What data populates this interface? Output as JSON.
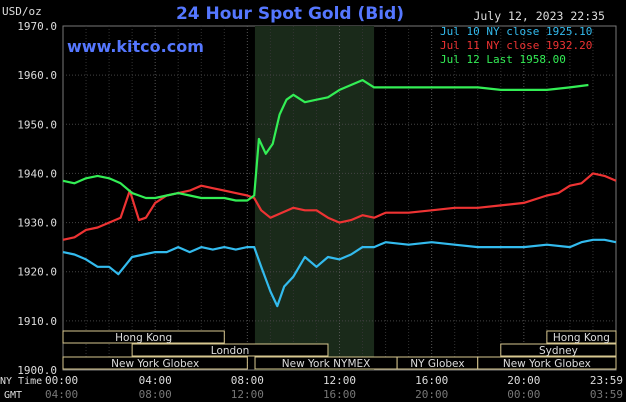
{
  "header": {
    "unit_label": "USD/oz",
    "title": "24 Hour Spot Gold (Bid)",
    "datetime": "July 12, 2023 22:35",
    "watermark": "www.kitco.com"
  },
  "legend": [
    {
      "label": "Jul 10 NY close 1925.10",
      "color": "#33bbee"
    },
    {
      "label": "Jul 11 NY close 1932.20",
      "color": "#ee3333"
    },
    {
      "label": "Jul 12 Last 1958.00",
      "color": "#33ee55"
    }
  ],
  "axis_labels": {
    "ny_time": "NY Time",
    "gmt": "GMT"
  },
  "sessions": [
    {
      "name": "Hong Kong",
      "row": 0,
      "start": "00:00",
      "end": "07:00"
    },
    {
      "name": "Hong Kong",
      "row": 0,
      "start": "21:00",
      "end": "24:00"
    },
    {
      "name": "London",
      "row": 1,
      "start": "03:00",
      "end": "11:30"
    },
    {
      "name": "Sydney",
      "row": 1,
      "start": "19:00",
      "end": "24:00"
    },
    {
      "name": "New York Globex",
      "row": 2,
      "start": "00:00",
      "end": "08:00"
    },
    {
      "name": "New York NYMEX",
      "row": 2,
      "start": "08:20",
      "end": "14:30"
    },
    {
      "name": "NY Globex",
      "row": 2,
      "start": "14:30",
      "end": "18:00"
    },
    {
      "name": "New York Globex",
      "row": 2,
      "start": "18:00",
      "end": "24:00"
    }
  ],
  "chart_data": {
    "type": "line",
    "title": "24 Hour Spot Gold (Bid)",
    "ylabel": "USD/oz",
    "ylim": [
      1900,
      1970
    ],
    "y_ticks": [
      "1900.0",
      "1910.0",
      "1920.0",
      "1930.0",
      "1940.0",
      "1950.0",
      "1960.0",
      "1970.0"
    ],
    "x_ticks_ny": [
      "00:00",
      "04:00",
      "08:00",
      "12:00",
      "16:00",
      "20:00",
      "23:59"
    ],
    "x_ticks_gmt": [
      "04:00",
      "08:00",
      "12:00",
      "16:00",
      "20:00",
      "00:00",
      "03:59"
    ],
    "x_range_hours": [
      0,
      24
    ],
    "highlight_hours": [
      8.33,
      13.5
    ],
    "grid": true,
    "x_unit": "NY time, hours",
    "series": [
      {
        "name": "Jul 10 NY close 1925.10",
        "color": "#33bbee",
        "x": [
          0,
          0.5,
          1,
          1.5,
          2,
          2.4,
          3,
          3.5,
          4,
          4.5,
          5,
          5.5,
          6,
          6.5,
          7,
          7.5,
          8,
          8.3,
          8.6,
          9,
          9.3,
          9.6,
          10,
          10.5,
          11,
          11.5,
          12,
          12.5,
          13,
          13.5,
          14,
          15,
          16,
          17,
          18,
          19,
          20,
          21,
          22,
          22.5,
          23,
          23.5,
          24
        ],
        "y": [
          1924,
          1923.5,
          1922.5,
          1921,
          1921,
          1919.5,
          1923,
          1923.5,
          1924,
          1924,
          1925,
          1924,
          1925,
          1924.5,
          1925,
          1924.5,
          1925,
          1925,
          1921,
          1916,
          1913,
          1917,
          1919,
          1923,
          1921,
          1923,
          1922.5,
          1923.5,
          1925,
          1925,
          1926,
          1925.5,
          1926,
          1925.5,
          1925,
          1925,
          1925,
          1925.5,
          1925,
          1926,
          1926.5,
          1926.5,
          1926
        ]
      },
      {
        "name": "Jul 11 NY close 1932.20",
        "color": "#ee3333",
        "x": [
          0,
          0.5,
          1,
          1.5,
          2,
          2.5,
          2.9,
          3.3,
          3.6,
          4,
          4.5,
          5,
          5.5,
          6,
          6.5,
          7,
          7.5,
          8,
          8.3,
          8.6,
          9,
          9.5,
          10,
          10.5,
          11,
          11.5,
          12,
          12.5,
          13,
          13.5,
          14,
          15,
          16,
          17,
          18,
          19,
          20,
          21,
          21.5,
          22,
          22.5,
          23,
          23.5,
          24
        ],
        "y": [
          1926.5,
          1927,
          1928.5,
          1929,
          1930,
          1931,
          1936.5,
          1930.5,
          1931,
          1934,
          1935.5,
          1936,
          1936.5,
          1937.5,
          1937,
          1936.5,
          1936,
          1935.5,
          1935,
          1932.5,
          1931,
          1932,
          1933,
          1932.5,
          1932.5,
          1931,
          1930,
          1930.5,
          1931.5,
          1931,
          1932,
          1932,
          1932.5,
          1933,
          1933,
          1933.5,
          1934,
          1935.5,
          1936,
          1937.5,
          1938,
          1940,
          1939.5,
          1938.5
        ]
      },
      {
        "name": "Jul 12 Last 1958.00",
        "color": "#33ee55",
        "x": [
          0,
          0.5,
          1,
          1.5,
          2,
          2.5,
          3,
          3.3,
          3.6,
          4,
          4.5,
          5,
          5.5,
          6,
          6.5,
          7,
          7.5,
          8,
          8.3,
          8.5,
          8.8,
          9.1,
          9.4,
          9.7,
          10,
          10.5,
          11,
          11.5,
          12,
          12.5,
          13,
          13.5,
          14,
          15,
          16,
          17,
          18,
          19,
          20,
          21,
          22,
          22.8
        ],
        "y": [
          1938.5,
          1938,
          1939,
          1939.5,
          1939,
          1938,
          1936,
          1935.5,
          1935,
          1935,
          1935.5,
          1936,
          1935.5,
          1935,
          1935,
          1935,
          1934.5,
          1934.5,
          1935.5,
          1947,
          1944,
          1946,
          1952,
          1955,
          1956,
          1954.5,
          1955,
          1955.5,
          1957,
          1958,
          1959,
          1957.5,
          1957.5,
          1957.5,
          1957.5,
          1957.5,
          1957.5,
          1957,
          1957,
          1957,
          1957.5,
          1958
        ]
      }
    ]
  }
}
